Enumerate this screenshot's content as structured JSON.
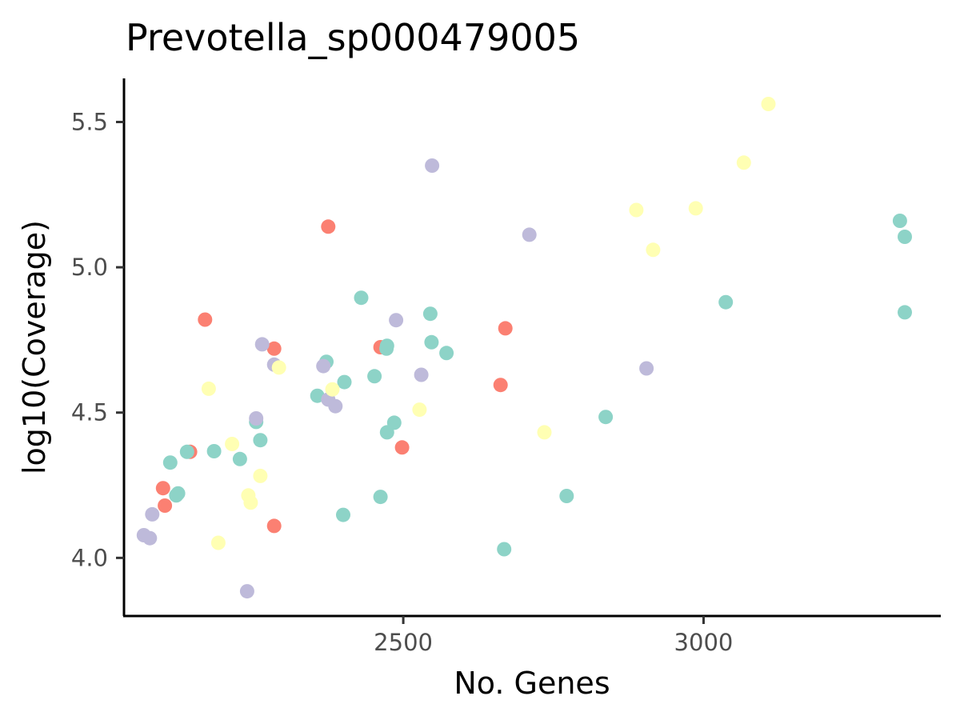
{
  "chart_data": {
    "type": "scatter",
    "title": "Prevotella_sp000479005",
    "xlabel": "No. Genes",
    "ylabel": "log10(Coverage)",
    "xlim": [
      2035,
      3395
    ],
    "ylim": [
      3.8,
      5.65
    ],
    "x_ticks": [
      2500,
      3000
    ],
    "x_tick_labels": [
      "2500",
      "3000"
    ],
    "y_ticks": [
      4.0,
      4.5,
      5.0,
      5.5
    ],
    "y_tick_labels": [
      "4.0",
      "4.5",
      "5.0",
      "5.5"
    ],
    "grid": false,
    "legend": "none",
    "colors": {
      "red": "#fb8072",
      "teal": "#8dd3c7",
      "lavender": "#bebada",
      "yellow": "#ffffb3"
    },
    "series": [
      {
        "color": "#fb8072",
        "points": [
          [
            2170,
            4.82
          ],
          [
            2375,
            5.14
          ],
          [
            2285,
            4.72
          ],
          [
            2462,
            4.725
          ],
          [
            2670,
            4.79
          ],
          [
            2662,
            4.595
          ],
          [
            2498,
            4.38
          ],
          [
            2145,
            4.365
          ],
          [
            2100,
            4.24
          ],
          [
            2103,
            4.18
          ],
          [
            2285,
            4.11
          ]
        ]
      },
      {
        "color": "#8dd3c7",
        "points": [
          [
            2430,
            4.895
          ],
          [
            2545,
            4.84
          ],
          [
            2547,
            4.742
          ],
          [
            2572,
            4.705
          ],
          [
            2473,
            4.73
          ],
          [
            2472,
            4.72
          ],
          [
            2372,
            4.675
          ],
          [
            2402,
            4.605
          ],
          [
            2452,
            4.625
          ],
          [
            2357,
            4.558
          ],
          [
            2485,
            4.465
          ],
          [
            2473,
            4.432
          ],
          [
            2262,
            4.405
          ],
          [
            2255,
            4.468
          ],
          [
            2185,
            4.367
          ],
          [
            2228,
            4.34
          ],
          [
            2140,
            4.365
          ],
          [
            2112,
            4.328
          ],
          [
            2125,
            4.222
          ],
          [
            2122,
            4.215
          ],
          [
            2462,
            4.21
          ],
          [
            2400,
            4.148
          ],
          [
            2668,
            4.03
          ],
          [
            2772,
            4.213
          ],
          [
            2837,
            4.485
          ],
          [
            3037,
            4.88
          ],
          [
            3327,
            5.16
          ],
          [
            3335,
            5.105
          ],
          [
            3335,
            4.845
          ]
        ]
      },
      {
        "color": "#bebada",
        "points": [
          [
            2548,
            5.35
          ],
          [
            2710,
            5.112
          ],
          [
            2488,
            4.818
          ],
          [
            2265,
            4.735
          ],
          [
            2285,
            4.665
          ],
          [
            2367,
            4.66
          ],
          [
            2530,
            4.63
          ],
          [
            2375,
            4.545
          ],
          [
            2387,
            4.522
          ],
          [
            2255,
            4.48
          ],
          [
            2905,
            4.652
          ],
          [
            2082,
            4.15
          ],
          [
            2068,
            4.078
          ],
          [
            2078,
            4.068
          ],
          [
            2240,
            3.885
          ]
        ]
      },
      {
        "color": "#ffffb3",
        "points": [
          [
            3108,
            5.562
          ],
          [
            3067,
            5.36
          ],
          [
            2888,
            5.197
          ],
          [
            2987,
            5.203
          ],
          [
            2916,
            5.06
          ],
          [
            2293,
            4.655
          ],
          [
            2382,
            4.58
          ],
          [
            2176,
            4.582
          ],
          [
            2527,
            4.51
          ],
          [
            2735,
            4.432
          ],
          [
            2215,
            4.392
          ],
          [
            2262,
            4.282
          ],
          [
            2242,
            4.215
          ],
          [
            2246,
            4.19
          ],
          [
            2192,
            4.052
          ]
        ]
      }
    ]
  }
}
